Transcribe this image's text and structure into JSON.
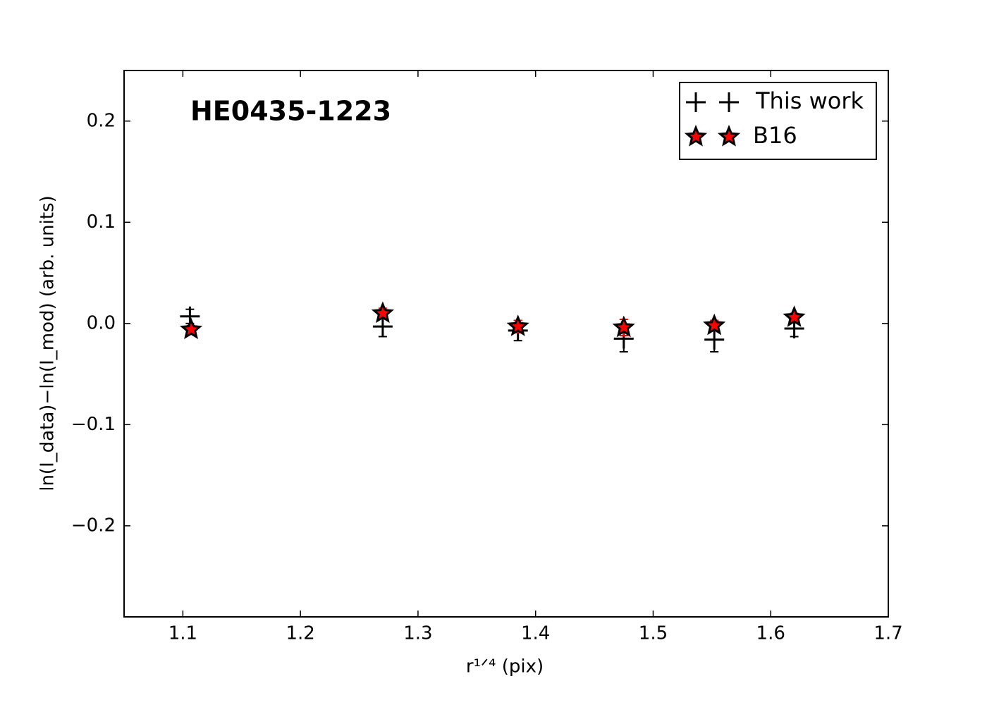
{
  "chart_data": {
    "type": "scatter",
    "annotation": "HE0435-1223",
    "xlabel": "r¹ᐟ⁴ (pix)",
    "ylabel": "ln(I_data)−ln(I_mod) (arb. units)",
    "xlim": [
      1.05,
      1.7
    ],
    "ylim": [
      -0.29,
      0.25
    ],
    "xticks": [
      1.1,
      1.2,
      1.3,
      1.4,
      1.5,
      1.6,
      1.7
    ],
    "yticks": [
      {
        "value": -0.2,
        "label": "−0.2"
      },
      {
        "value": -0.1,
        "label": "−0.1"
      },
      {
        "value": 0,
        "label": "0.0"
      },
      0.1,
      0.2
    ],
    "legend": "upper right",
    "series": [
      {
        "name": "This work",
        "marker": "plus",
        "color": "#000000",
        "x": [
          1.106,
          1.27,
          1.385,
          1.475,
          1.552,
          1.62
        ],
        "values": [
          0.007,
          -0.003,
          -0.007,
          -0.015,
          -0.016,
          -0.005
        ],
        "errors": [
          0.007,
          0.01,
          0.01,
          0.013,
          0.012,
          0.008
        ]
      },
      {
        "name": "B16",
        "marker": "star",
        "color": "#ff0000",
        "x": [
          1.107,
          1.27,
          1.385,
          1.475,
          1.552,
          1.62
        ],
        "values": [
          -0.006,
          0.01,
          -0.003,
          -0.004,
          -0.002,
          0.006
        ],
        "errors": [
          0.004,
          0.005,
          0.006,
          0.008,
          0.005,
          0.004
        ]
      }
    ]
  }
}
